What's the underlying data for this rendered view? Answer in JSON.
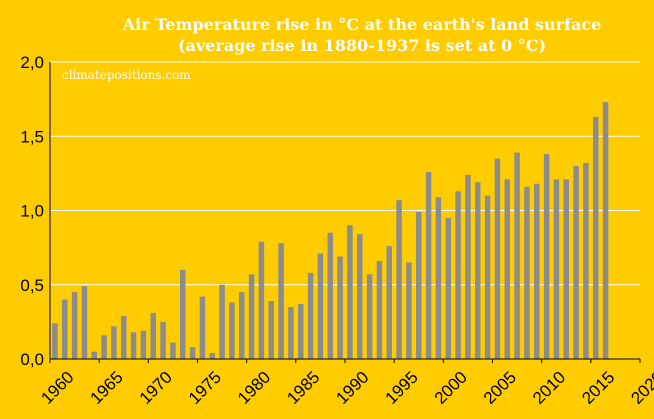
{
  "chart_data": {
    "type": "bar",
    "title_line1": "Air Temperature rise in °C at the earth's land surface",
    "title_line2": "(average rise in 1880-1937 is set at 0 °C)",
    "watermark": "climatepositions.com",
    "xlabel": "",
    "ylabel": "",
    "ylim": [
      0,
      2.0
    ],
    "xlim": [
      1960,
      2020
    ],
    "y_ticks": [
      "0,0",
      "0,5",
      "1,0",
      "1,5",
      "2,0"
    ],
    "y_tick_values": [
      0,
      0.5,
      1.0,
      1.5,
      2.0
    ],
    "x_ticks": [
      "1960",
      "1965",
      "1970",
      "1975",
      "1980",
      "1985",
      "1990",
      "1995",
      "2000",
      "2005",
      "2010",
      "2015",
      "2020"
    ],
    "x_tick_values": [
      1960,
      1965,
      1970,
      1975,
      1980,
      1985,
      1990,
      1995,
      2000,
      2005,
      2010,
      2015,
      2020
    ],
    "years": [
      1960,
      1961,
      1962,
      1963,
      1964,
      1965,
      1966,
      1967,
      1968,
      1969,
      1970,
      1971,
      1972,
      1973,
      1974,
      1975,
      1976,
      1977,
      1978,
      1979,
      1980,
      1981,
      1982,
      1983,
      1984,
      1985,
      1986,
      1987,
      1988,
      1989,
      1990,
      1991,
      1992,
      1993,
      1994,
      1995,
      1996,
      1997,
      1998,
      1999,
      2000,
      2001,
      2002,
      2003,
      2004,
      2005,
      2006,
      2007,
      2008,
      2009,
      2010,
      2011,
      2012,
      2013,
      2014,
      2015,
      2016
    ],
    "values": [
      0.24,
      0.4,
      0.45,
      0.49,
      0.05,
      0.16,
      0.22,
      0.29,
      0.18,
      0.19,
      0.31,
      0.25,
      0.11,
      0.6,
      0.08,
      0.42,
      0.04,
      0.5,
      0.38,
      0.45,
      0.57,
      0.79,
      0.39,
      0.78,
      0.35,
      0.37,
      0.58,
      0.71,
      0.85,
      0.69,
      0.9,
      0.84,
      0.57,
      0.66,
      0.76,
      1.07,
      0.65,
      0.99,
      1.26,
      1.09,
      0.95,
      1.13,
      1.24,
      1.19,
      1.1,
      1.35,
      1.21,
      1.39,
      1.16,
      1.18,
      1.38,
      1.21,
      1.21,
      1.3,
      1.32,
      1.63,
      1.73
    ],
    "colors": {
      "background": "#FFCC00",
      "bar": "#8C8C8C",
      "gridline": "#FFFFFF",
      "title": "#FFFFFF"
    },
    "grid": true
  }
}
